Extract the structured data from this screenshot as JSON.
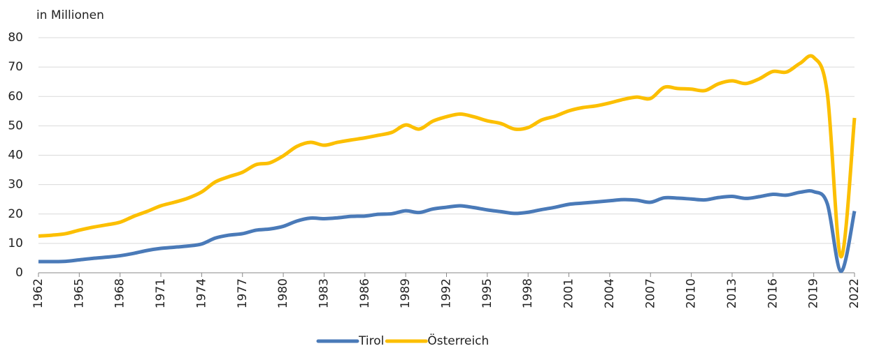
{
  "chart_data": {
    "type": "line",
    "y_label": "in Millionen",
    "x": [
      1962,
      1963,
      1964,
      1965,
      1966,
      1967,
      1968,
      1969,
      1970,
      1971,
      1972,
      1973,
      1974,
      1975,
      1976,
      1977,
      1978,
      1979,
      1980,
      1981,
      1982,
      1983,
      1984,
      1985,
      1986,
      1987,
      1988,
      1989,
      1990,
      1991,
      1992,
      1993,
      1994,
      1995,
      1996,
      1997,
      1998,
      1999,
      2000,
      2001,
      2002,
      2003,
      2004,
      2005,
      2006,
      2007,
      2008,
      2009,
      2010,
      2011,
      2012,
      2013,
      2014,
      2015,
      2016,
      2017,
      2018,
      2019,
      2020,
      2021,
      2022
    ],
    "series": [
      {
        "name": "Tirol",
        "color": "#4a7ab8",
        "values": [
          3.8,
          3.8,
          3.9,
          4.4,
          4.9,
          5.3,
          5.8,
          6.6,
          7.6,
          8.3,
          8.7,
          9.1,
          9.8,
          11.8,
          12.8,
          13.3,
          14.5,
          14.9,
          15.8,
          17.6,
          18.6,
          18.4,
          18.7,
          19.2,
          19.3,
          19.9,
          20.1,
          21.1,
          20.5,
          21.7,
          22.3,
          22.8,
          22.2,
          21.4,
          20.8,
          20.2,
          20.6,
          21.5,
          22.3,
          23.3,
          23.7,
          24.1,
          24.5,
          24.9,
          24.7,
          24.0,
          25.5,
          25.4,
          25.1,
          24.8,
          25.6,
          26.0,
          25.3,
          25.9,
          26.7,
          26.4,
          27.4,
          27.6,
          23.5,
          0.5,
          21.0
        ]
      },
      {
        "name": "Österreich",
        "color": "#fcbf00",
        "values": [
          12.5,
          12.8,
          13.3,
          14.5,
          15.5,
          16.3,
          17.2,
          19.2,
          20.9,
          22.8,
          24.0,
          25.4,
          27.5,
          30.9,
          32.7,
          34.2,
          36.8,
          37.4,
          39.8,
          43.0,
          44.4,
          43.4,
          44.4,
          45.2,
          45.9,
          46.8,
          47.8,
          50.3,
          48.9,
          51.6,
          53.1,
          54.0,
          53.1,
          51.7,
          50.8,
          48.9,
          49.4,
          52.0,
          53.3,
          55.1,
          56.2,
          56.8,
          57.8,
          59.0,
          59.8,
          59.3,
          63.1,
          62.7,
          62.5,
          62.0,
          64.3,
          65.3,
          64.4,
          66.0,
          68.5,
          68.3,
          71.3,
          73.3,
          61.0,
          5.5,
          52.7
        ]
      }
    ],
    "xlim": [
      1962,
      2022
    ],
    "xticks": [
      1962,
      1965,
      1968,
      1971,
      1974,
      1977,
      1980,
      1983,
      1986,
      1989,
      1992,
      1995,
      1998,
      2001,
      2004,
      2007,
      2010,
      2013,
      2016,
      2019,
      2022
    ],
    "ylim": [
      0,
      80
    ],
    "yticks": [
      0,
      10,
      20,
      30,
      40,
      50,
      60,
      70,
      80
    ],
    "grid": true,
    "legend": "bottom"
  }
}
